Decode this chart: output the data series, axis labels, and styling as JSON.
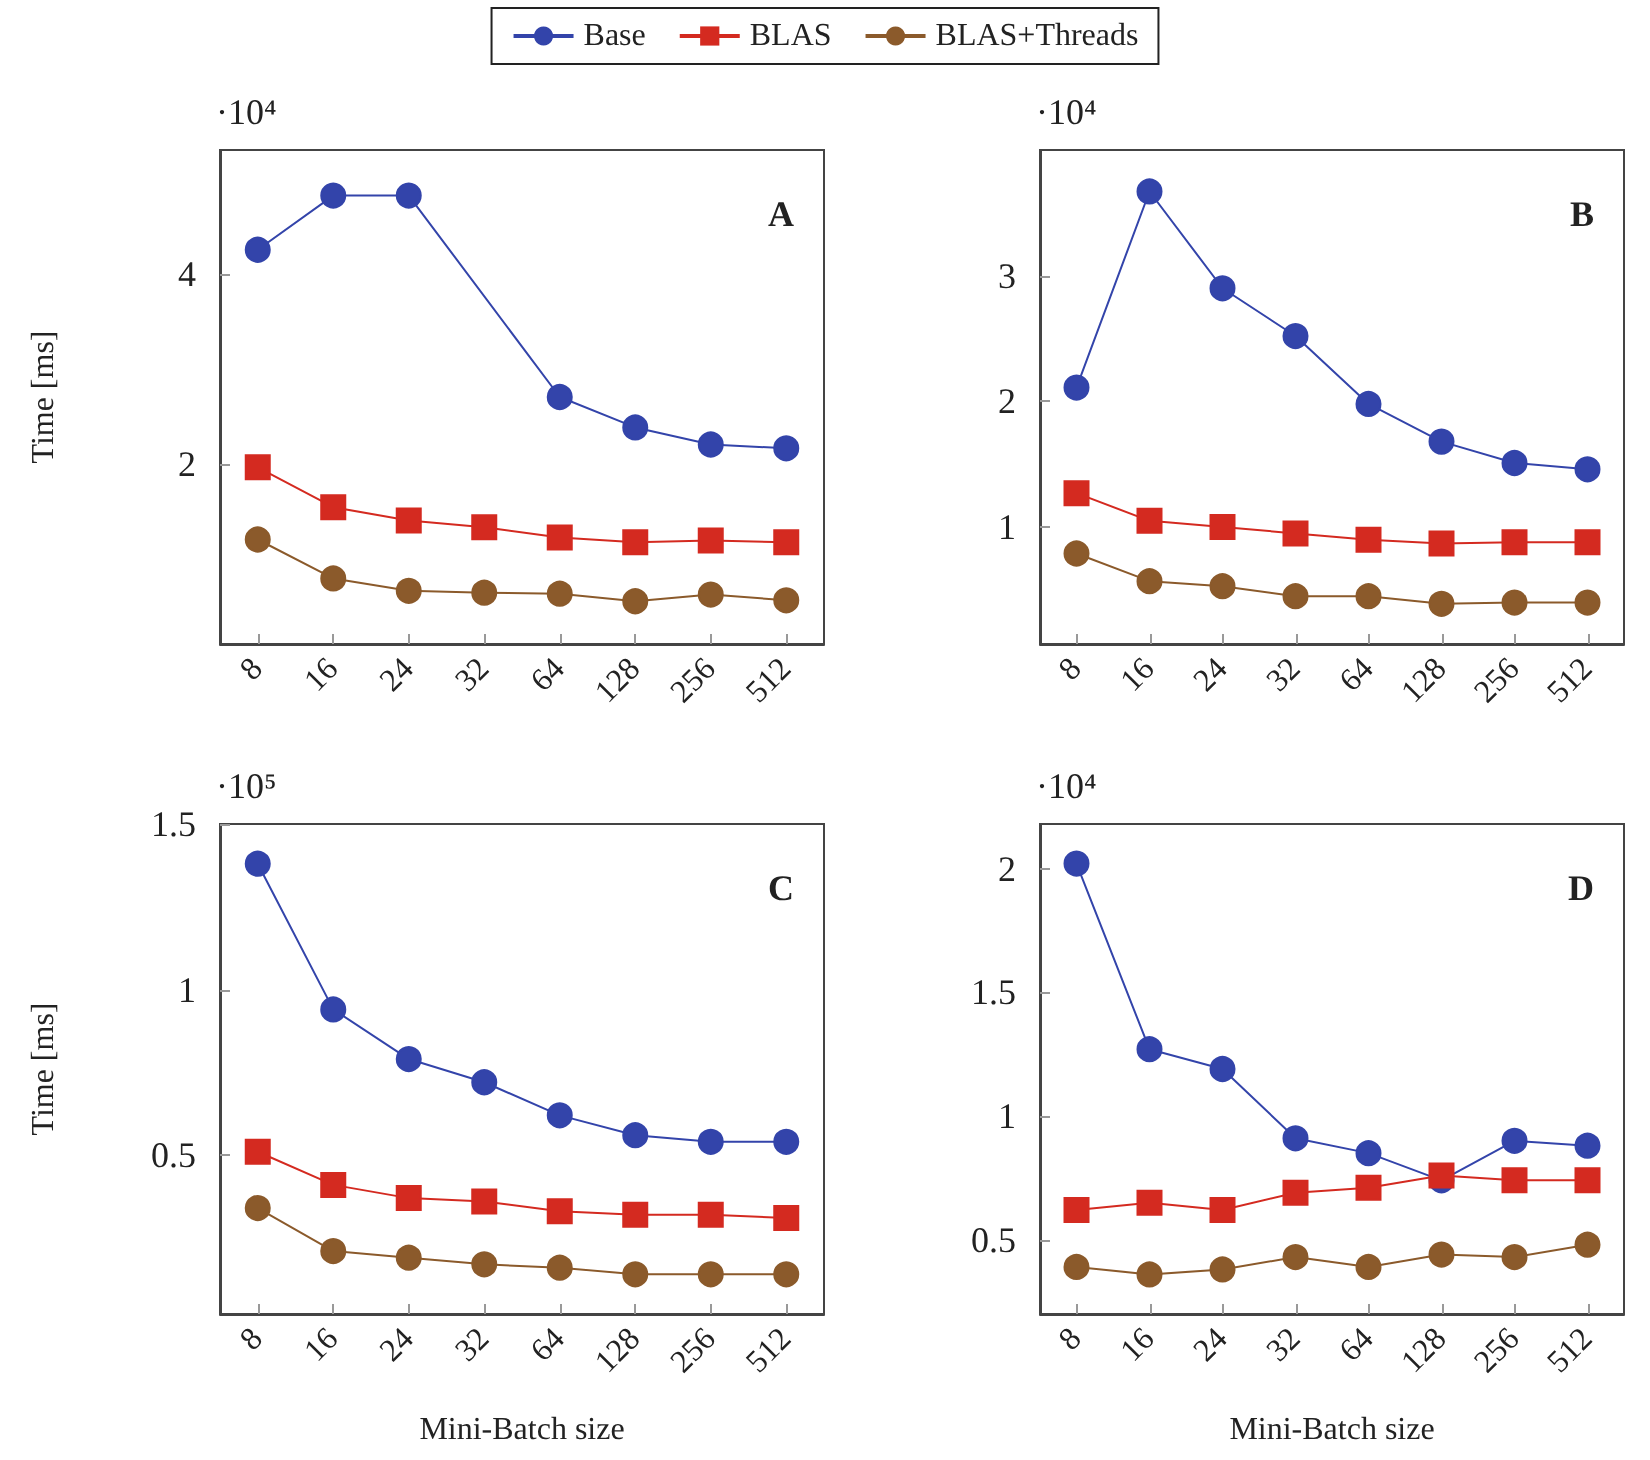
{
  "chart_data": [
    {
      "type": "line",
      "title": "A",
      "ylabel": "Time [ms]",
      "annotations": [
        "·10⁴"
      ],
      "categories": [
        "8",
        "16",
        "24",
        "32",
        "64",
        "128",
        "256",
        "512"
      ],
      "legend": "top",
      "ylim": [
        0.1,
        5.3
      ],
      "yticks": [
        2,
        4
      ],
      "grid": false,
      "series": [
        {
          "name": "Base",
          "color": "#3344aa",
          "marker": "circle",
          "values": [
            4.25,
            4.82,
            4.82,
            null,
            2.7,
            2.38,
            2.2,
            2.16
          ]
        },
        {
          "name": "BLAS",
          "color": "#d42a20",
          "marker": "square",
          "values": [
            1.96,
            1.54,
            1.4,
            1.33,
            1.22,
            1.17,
            1.19,
            1.17
          ]
        },
        {
          "name": "BLAS+Threads",
          "color": "#8b5a2b",
          "marker": "circle",
          "values": [
            1.2,
            0.79,
            0.66,
            0.64,
            0.63,
            0.55,
            0.62,
            0.56
          ]
        }
      ]
    },
    {
      "type": "line",
      "title": "B",
      "annotations": [
        "·10⁴"
      ],
      "categories": [
        "8",
        "16",
        "24",
        "32",
        "64",
        "128",
        "256",
        "512"
      ],
      "ylim": [
        0.07,
        4.0
      ],
      "yticks": [
        1,
        2,
        3
      ],
      "grid": false,
      "series": [
        {
          "name": "Base",
          "color": "#3344aa",
          "marker": "circle",
          "values": [
            2.11,
            3.67,
            2.9,
            2.52,
            1.98,
            1.68,
            1.51,
            1.46
          ]
        },
        {
          "name": "BLAS",
          "color": "#d42a20",
          "marker": "square",
          "values": [
            1.27,
            1.05,
            1.0,
            0.95,
            0.9,
            0.87,
            0.88,
            0.88
          ]
        },
        {
          "name": "BLAS+Threads",
          "color": "#8b5a2b",
          "marker": "circle",
          "values": [
            0.79,
            0.57,
            0.53,
            0.45,
            0.45,
            0.39,
            0.4,
            0.4
          ]
        }
      ]
    },
    {
      "type": "line",
      "title": "C",
      "xlabel": "Mini-Batch size",
      "ylabel": "Time [ms]",
      "annotations": [
        "·10⁵"
      ],
      "categories": [
        "8",
        "16",
        "24",
        "32",
        "64",
        "128",
        "256",
        "512"
      ],
      "ylim": [
        0.02,
        1.5
      ],
      "yticks": [
        0.5,
        1,
        1.5
      ],
      "grid": false,
      "series": [
        {
          "name": "Base",
          "color": "#3344aa",
          "marker": "circle",
          "values": [
            1.38,
            0.94,
            0.79,
            0.72,
            0.62,
            0.56,
            0.54,
            0.54
          ]
        },
        {
          "name": "BLAS",
          "color": "#d42a20",
          "marker": "square",
          "values": [
            0.51,
            0.41,
            0.37,
            0.36,
            0.33,
            0.32,
            0.32,
            0.31
          ]
        },
        {
          "name": "BLAS+Threads",
          "color": "#8b5a2b",
          "marker": "circle",
          "values": [
            0.34,
            0.21,
            0.19,
            0.17,
            0.16,
            0.14,
            0.14,
            0.14
          ]
        }
      ]
    },
    {
      "type": "line",
      "title": "D",
      "xlabel": "Mini-Batch size",
      "annotations": [
        "·10⁴"
      ],
      "categories": [
        "8",
        "16",
        "24",
        "32",
        "64",
        "128",
        "256",
        "512"
      ],
      "ylim": [
        0.2,
        2.18
      ],
      "yticks": [
        0.5,
        1,
        1.5,
        2
      ],
      "grid": false,
      "series": [
        {
          "name": "Base",
          "color": "#3344aa",
          "marker": "circle",
          "values": [
            2.02,
            1.27,
            1.19,
            0.91,
            0.85,
            0.74,
            0.9,
            0.88
          ]
        },
        {
          "name": "BLAS",
          "color": "#d42a20",
          "marker": "square",
          "values": [
            0.62,
            0.65,
            0.62,
            0.69,
            0.71,
            0.76,
            0.74,
            0.74
          ]
        },
        {
          "name": "BLAS+Threads",
          "color": "#8b5a2b",
          "marker": "circle",
          "values": [
            0.39,
            0.36,
            0.38,
            0.43,
            0.39,
            0.44,
            0.43,
            0.48
          ]
        }
      ]
    }
  ]
}
